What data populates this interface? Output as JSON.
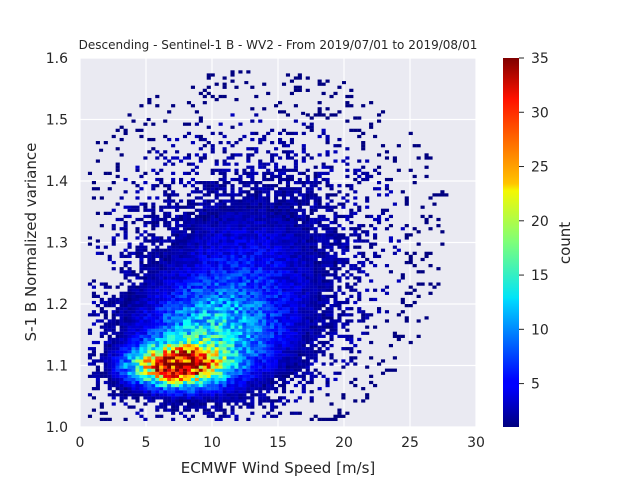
{
  "chart_data": {
    "type": "heatmap",
    "title": "Descending - Sentinel-1 B - WV2 - From 2019/07/01 to 2019/08/01",
    "xlabel": "ECMWF Wind Speed [m/s]",
    "ylabel": "S-1 B Normalized variance",
    "xlim": [
      0,
      30
    ],
    "ylim": [
      1.0,
      1.6
    ],
    "xticks": [
      "0",
      "5",
      "10",
      "15",
      "20",
      "25",
      "30"
    ],
    "yticks": [
      "1.0",
      "1.1",
      "1.2",
      "1.3",
      "1.4",
      "1.5",
      "1.6"
    ],
    "grid": true,
    "colormap": "jet",
    "colorbar": {
      "label": "count",
      "range": [
        1,
        35
      ],
      "ticks": [
        "5",
        "10",
        "15",
        "20",
        "25",
        "30",
        "35"
      ]
    },
    "density_peaks": [
      {
        "x": 6.5,
        "y": 1.09,
        "count": 28
      },
      {
        "x": 7.5,
        "y": 1.1,
        "count": 27
      },
      {
        "x": 8.0,
        "y": 1.105,
        "count": 30
      },
      {
        "x": 5.5,
        "y": 1.085,
        "count": 22
      },
      {
        "x": 9.0,
        "y": 1.12,
        "count": 18
      },
      {
        "x": 4.0,
        "y": 1.08,
        "count": 12
      },
      {
        "x": 11.0,
        "y": 1.16,
        "count": 10
      },
      {
        "x": 13.0,
        "y": 1.22,
        "count": 6
      }
    ],
    "outliers": [
      {
        "x": 12.6,
        "y": 1.56
      },
      {
        "x": 20.0,
        "y": 1.56
      },
      {
        "x": 1.6,
        "y": 1.45
      },
      {
        "x": 5.2,
        "y": 1.5
      },
      {
        "x": 16.9,
        "y": 1.51
      }
    ]
  }
}
